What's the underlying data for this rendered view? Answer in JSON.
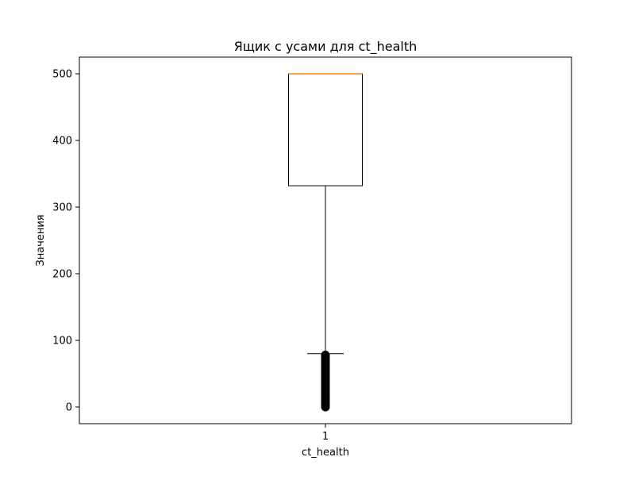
{
  "chart_data": {
    "type": "boxplot",
    "title": "Ящик с усами для ct_health",
    "xlabel": "ct_health",
    "ylabel": "Значения",
    "categories": [
      "1"
    ],
    "ylim": [
      -25,
      525
    ],
    "yticks": [
      0,
      100,
      200,
      300,
      400,
      500
    ],
    "grid": false,
    "box": {
      "whisker_low": 80,
      "q1": 332,
      "median": 500,
      "q3": 500,
      "whisker_high": 500,
      "outliers": [
        0,
        3,
        6,
        9,
        12,
        15,
        18,
        21,
        24,
        27,
        30,
        33,
        36,
        39,
        42,
        45,
        48,
        51,
        54,
        57,
        60,
        63,
        66,
        69,
        72,
        75,
        78
      ]
    },
    "colors": {
      "box": "#000000",
      "median": "#ff7f0e",
      "outliers": "#000000"
    }
  }
}
